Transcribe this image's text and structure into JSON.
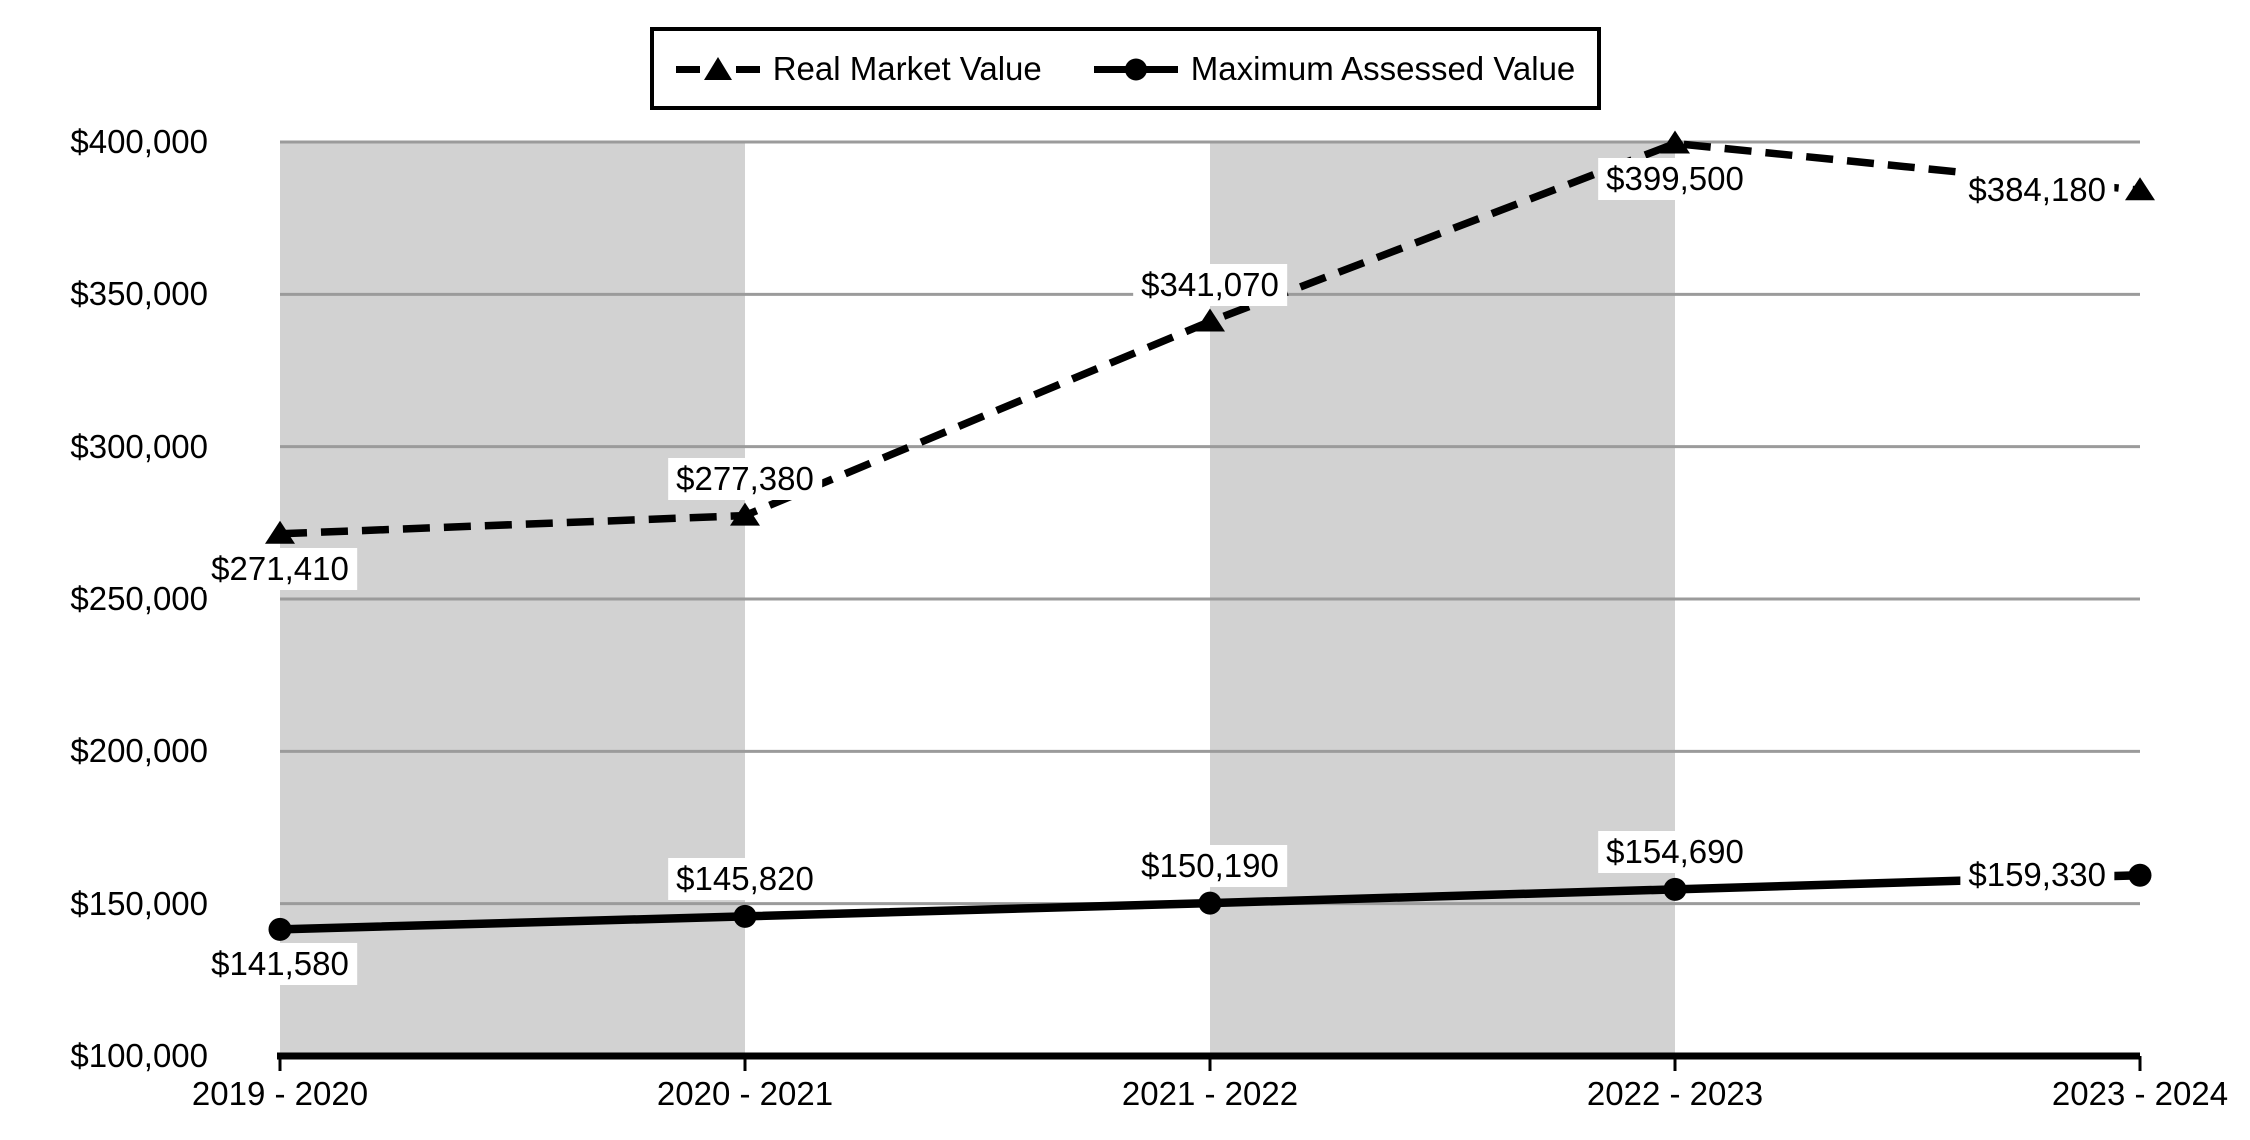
{
  "chart_data": {
    "type": "line",
    "title": "",
    "xlabel": "",
    "ylabel": "",
    "categories": [
      "2019 - 2020",
      "2020 - 2021",
      "2021 - 2022",
      "2022 - 2023",
      "2023 - 2024"
    ],
    "series": [
      {
        "name": "Real Market Value",
        "line_style": "dashed",
        "marker": "triangle",
        "values": [
          271410,
          277380,
          341070,
          399500,
          384180
        ],
        "labels": [
          "$271,410",
          "$277,380",
          "$341,070",
          "$399,500",
          "$384,180"
        ],
        "label_pos": [
          "below",
          "above",
          "above",
          "below",
          "left"
        ]
      },
      {
        "name": "Maximum Assessed Value",
        "line_style": "solid",
        "marker": "circle",
        "values": [
          141580,
          145820,
          150190,
          154690,
          159330
        ],
        "labels": [
          "$141,580",
          "$145,820",
          "$150,190",
          "$154,690",
          "$159,330"
        ],
        "label_pos": [
          "below",
          "above",
          "above",
          "above",
          "left"
        ]
      }
    ],
    "y_ticks": [
      "$400,000",
      "$350,000",
      "$300,000",
      "$250,000",
      "$200,000",
      "$150,000",
      "$100,000"
    ],
    "ylim": [
      100000,
      400000
    ],
    "y_tick_step": 50000,
    "grid": true,
    "legend_position": "top-center",
    "shaded_band_intervals": [
      [
        0,
        1
      ],
      [
        2,
        3
      ]
    ],
    "colors": {
      "series": "#000000",
      "band": "#d2d2d2",
      "gridline": "#9b9b9b",
      "axis": "#000000",
      "label_bg": "#ffffff"
    }
  }
}
